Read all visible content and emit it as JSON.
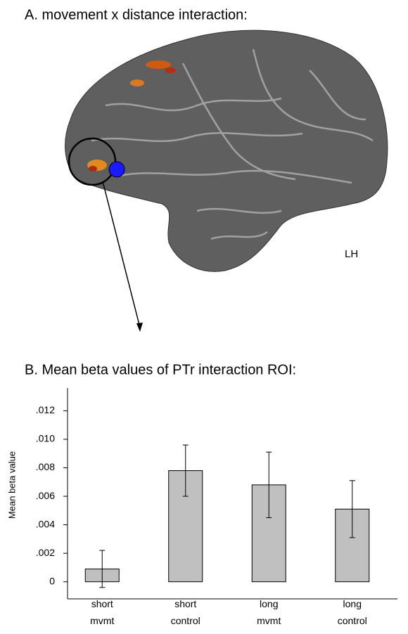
{
  "panel_a": {
    "title": "A.  movement x distance interaction:",
    "hemisphere_label": "LH"
  },
  "chart_data": {
    "type": "bar",
    "title": "B.  Mean beta values of PTr interaction ROI:",
    "y_label": "Mean beta value",
    "categories": [
      "short mvmt",
      "short control",
      "long mvmt",
      "long control"
    ],
    "values": [
      0.0009,
      0.0078,
      0.0068,
      0.0051
    ],
    "errors": [
      0.0013,
      0.0018,
      0.0023,
      0.002
    ],
    "color": "#c0c0c0",
    "ylim": [
      -0.0012,
      0.0136
    ],
    "yticks": [
      0,
      {
        "value": 0.002,
        "label": ".002"
      },
      {
        "value": 0.004,
        "label": ".004"
      },
      {
        "value": 0.006,
        "label": ".006"
      },
      {
        "value": 0.008,
        "label": ".008"
      },
      {
        "value": 0.01,
        "label": ".010"
      },
      {
        "value": 0.012,
        "label": ".012"
      }
    ]
  }
}
